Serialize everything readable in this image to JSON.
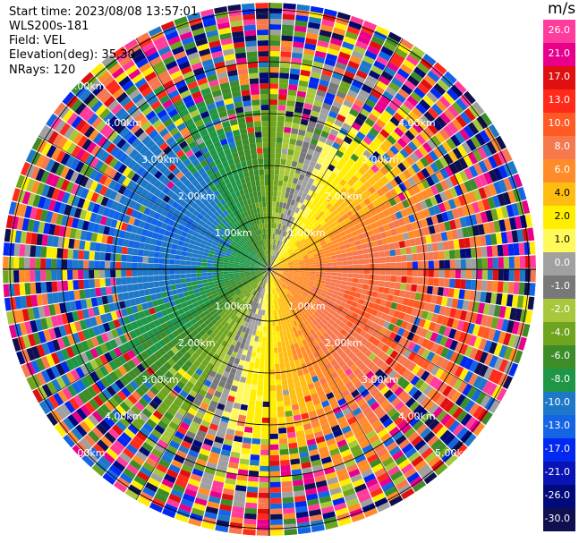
{
  "info": {
    "start_time": "Start time: 2023/08/08 13:57:01",
    "instrument": "WLS200s-181",
    "field": "Field: VEL",
    "elevation": "Elevation(deg): 35.30",
    "nrays": "NRays: 120"
  },
  "colorbar": {
    "unit": "m/s",
    "levels": [
      {
        "label": "26.0",
        "color": "#ff3c9c"
      },
      {
        "label": "21.0",
        "color": "#e8008a"
      },
      {
        "label": "17.0",
        "color": "#e01010"
      },
      {
        "label": "13.0",
        "color": "#ff2a1a"
      },
      {
        "label": "10.0",
        "color": "#ff5a24"
      },
      {
        "label": "8.0",
        "color": "#f8784e"
      },
      {
        "label": "6.0",
        "color": "#ff8c28"
      },
      {
        "label": "4.0",
        "color": "#ffbd12"
      },
      {
        "label": "2.0",
        "color": "#ffee00"
      },
      {
        "label": "1.0",
        "color": "#fff95a"
      },
      {
        "label": "0.0",
        "color": "#a0a0a0"
      },
      {
        "label": "-1.0",
        "color": "#787878"
      },
      {
        "label": "-2.0",
        "color": "#a8c83c"
      },
      {
        "label": "-4.0",
        "color": "#6ea41e"
      },
      {
        "label": "-6.0",
        "color": "#3c8c28"
      },
      {
        "label": "-8.0",
        "color": "#1e9646"
      },
      {
        "label": "-10.0",
        "color": "#1e78c8"
      },
      {
        "label": "-13.0",
        "color": "#1464e6"
      },
      {
        "label": "-17.0",
        "color": "#0028f0"
      },
      {
        "label": "-21.0",
        "color": "#0a14b4"
      },
      {
        "label": "-26.0",
        "color": "#000a78"
      },
      {
        "label": "-30.0",
        "color": "#101050"
      }
    ]
  },
  "ring_labels": [
    {
      "text": "1.00km",
      "angle": 135,
      "ring": 1
    },
    {
      "text": "1.00km",
      "angle": 45,
      "ring": 1
    },
    {
      "text": "1.00km",
      "angle": 225,
      "ring": 1
    },
    {
      "text": "1.00km",
      "angle": 315,
      "ring": 1
    },
    {
      "text": "2.00km",
      "angle": 135,
      "ring": 2
    },
    {
      "text": "2.00km",
      "angle": 45,
      "ring": 2
    },
    {
      "text": "2.00km",
      "angle": 225,
      "ring": 2
    },
    {
      "text": "2.00km",
      "angle": 315,
      "ring": 2
    },
    {
      "text": "3.00km",
      "angle": 135,
      "ring": 3
    },
    {
      "text": "3.00km",
      "angle": 45,
      "ring": 3
    },
    {
      "text": "3.00km",
      "angle": 225,
      "ring": 3
    },
    {
      "text": "3.00km",
      "angle": 315,
      "ring": 3
    },
    {
      "text": "4.00km",
      "angle": 135,
      "ring": 4
    },
    {
      "text": "4.00km",
      "angle": 45,
      "ring": 4
    },
    {
      "text": "4.00km",
      "angle": 225,
      "ring": 4
    },
    {
      "text": "4.00km",
      "angle": 315,
      "ring": 4
    },
    {
      "text": "5.00km",
      "angle": 135,
      "ring": 5
    },
    {
      "text": "5.00km",
      "angle": 225,
      "ring": 5
    },
    {
      "text": "5.00km",
      "angle": 315,
      "ring": 5
    }
  ]
}
